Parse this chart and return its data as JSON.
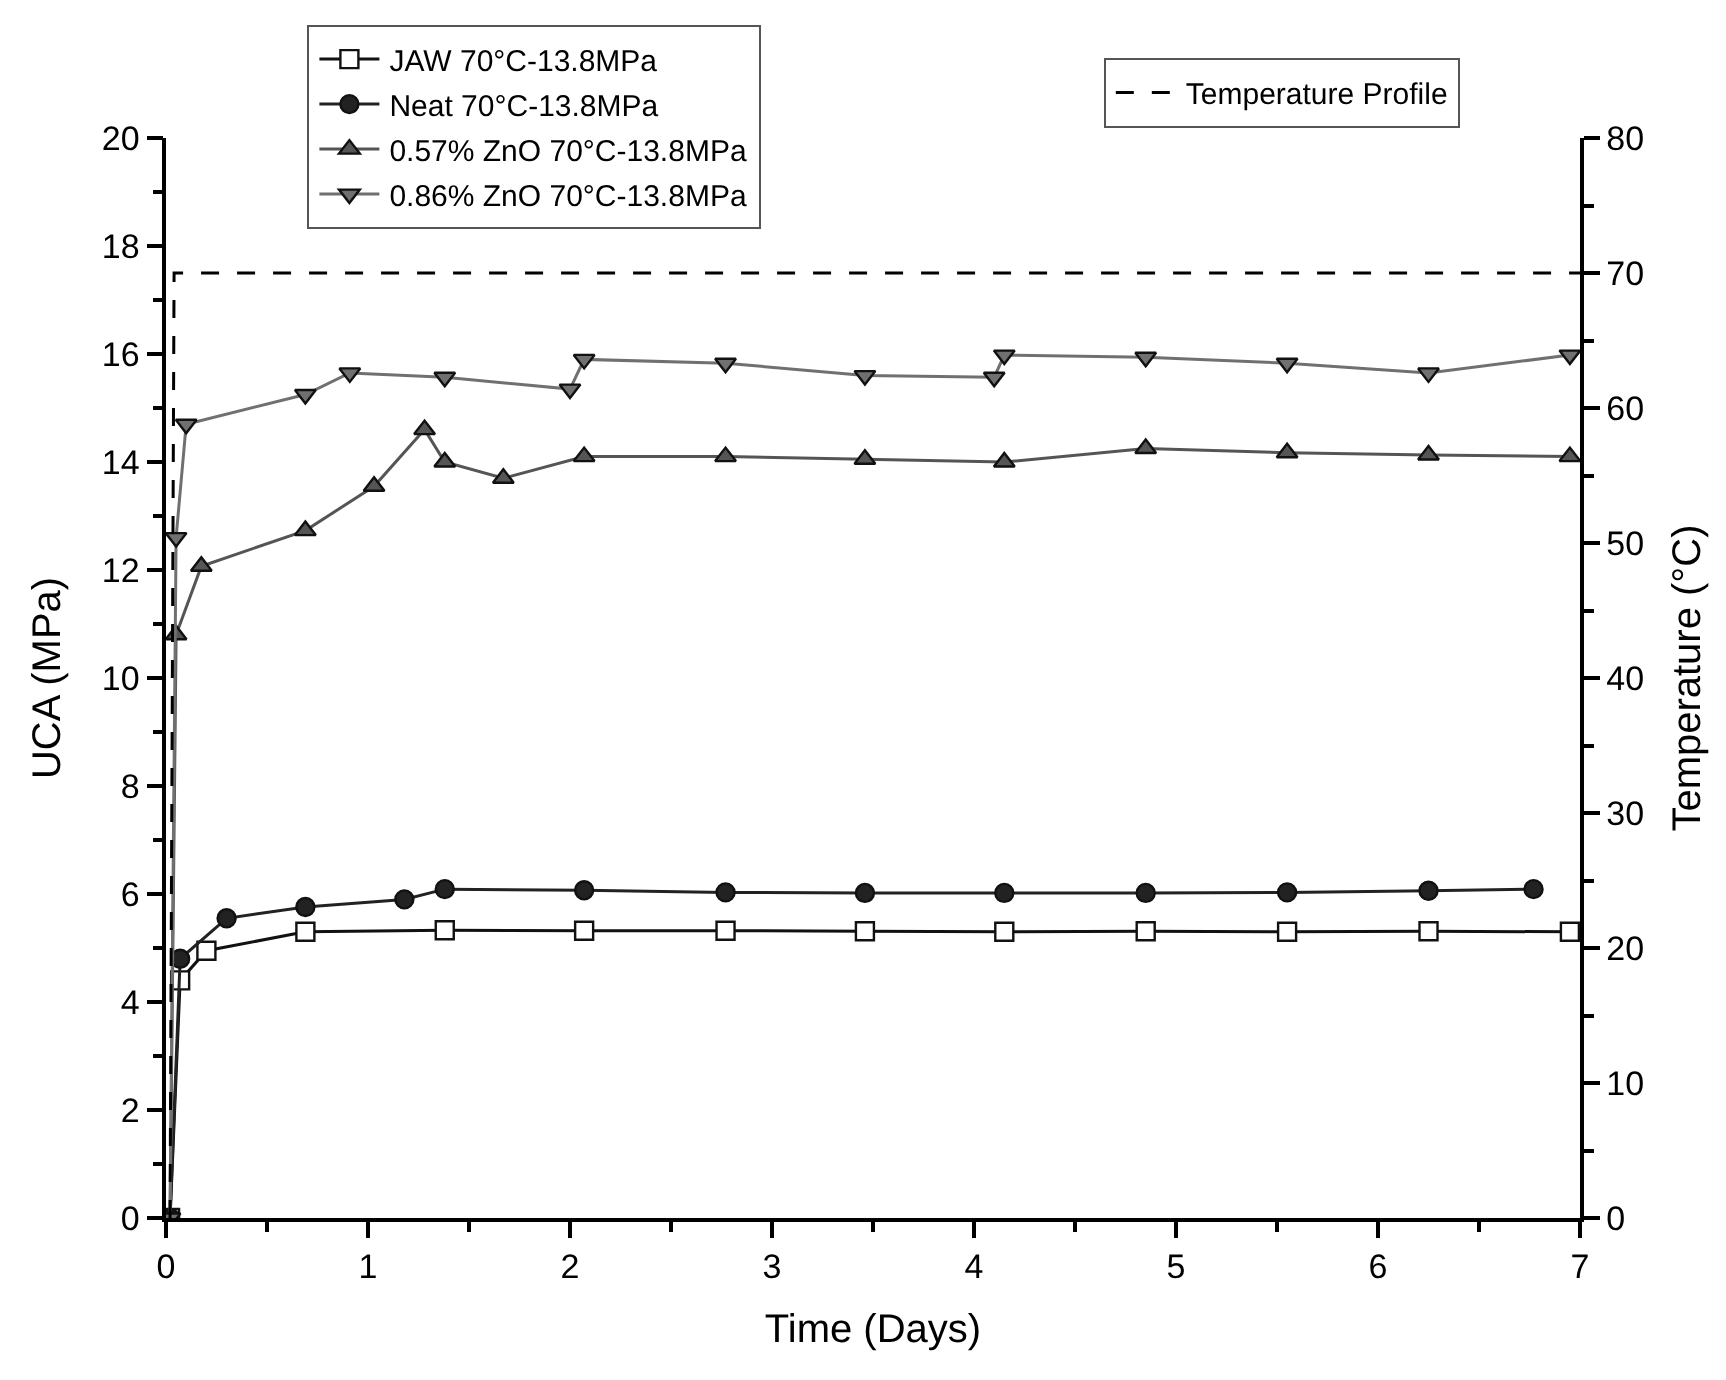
{
  "chart_data": {
    "type": "line",
    "xlabel": "Time (Days)",
    "ylabel": "UCA (MPa)",
    "y2label": "Temperature (°C)",
    "xlim": [
      0,
      7
    ],
    "xticks": [
      0,
      1,
      2,
      3,
      4,
      5,
      6,
      7
    ],
    "ylim": [
      0,
      20
    ],
    "yticks": [
      0,
      2,
      4,
      6,
      8,
      10,
      12,
      14,
      16,
      18,
      20
    ],
    "y2lim": [
      0,
      80
    ],
    "y2ticks": [
      0,
      10,
      20,
      30,
      40,
      50,
      60,
      70,
      80
    ],
    "legend": "top",
    "series": [
      {
        "name": "JAW 70°C-13.8MPa",
        "color": "#111111",
        "marker": "square",
        "x": [
          0.02,
          0.07,
          0.2,
          0.69,
          1.38,
          2.07,
          2.77,
          3.46,
          4.15,
          4.85,
          5.55,
          6.25,
          6.95
        ],
        "values": [
          0,
          4.4,
          4.95,
          5.3,
          5.33,
          5.32,
          5.32,
          5.31,
          5.3,
          5.31,
          5.3,
          5.31,
          5.3
        ]
      },
      {
        "name": "Neat 70°C-13.8MPa",
        "color": "#222222",
        "marker": "circle",
        "x": [
          0.02,
          0.07,
          0.3,
          0.69,
          1.18,
          1.38,
          2.07,
          2.77,
          3.46,
          4.15,
          4.85,
          5.55,
          6.25,
          6.77
        ],
        "values": [
          0,
          4.8,
          5.55,
          5.76,
          5.9,
          6.09,
          6.07,
          6.03,
          6.02,
          6.02,
          6.02,
          6.03,
          6.06,
          6.09
        ]
      },
      {
        "name": "0.57% ZnO 70°C-13.8MPa",
        "color": "#555555",
        "marker": "triangle",
        "x": [
          0.02,
          0.05,
          0.175,
          0.69,
          1.03,
          1.28,
          1.38,
          1.67,
          2.07,
          2.77,
          3.46,
          4.15,
          4.85,
          5.55,
          6.25,
          6.95
        ],
        "values": [
          0,
          10.8,
          12.07,
          12.73,
          13.55,
          14.6,
          14.0,
          13.7,
          14.1,
          14.1,
          14.05,
          14.0,
          14.25,
          14.17,
          14.13,
          14.1
        ]
      },
      {
        "name": "0.86% ZnO 70°C-13.8MPa",
        "color": "#707070",
        "marker": "triangle-down",
        "x": [
          0.02,
          0.05,
          0.1,
          0.69,
          0.91,
          1.38,
          2.0,
          2.07,
          2.77,
          3.46,
          4.1,
          4.15,
          4.85,
          5.55,
          6.25,
          6.95
        ],
        "values": [
          0,
          12.6,
          14.7,
          15.25,
          15.65,
          15.57,
          15.35,
          15.9,
          15.83,
          15.6,
          15.57,
          15.98,
          15.94,
          15.83,
          15.65,
          15.98
        ]
      },
      {
        "name": "Temperature Profile",
        "color": "#000000",
        "marker": "none",
        "line_style": "dashed",
        "axis": "y2",
        "x": [
          0.02,
          0.04,
          7.0
        ],
        "values": [
          0,
          70,
          70
        ]
      }
    ]
  }
}
